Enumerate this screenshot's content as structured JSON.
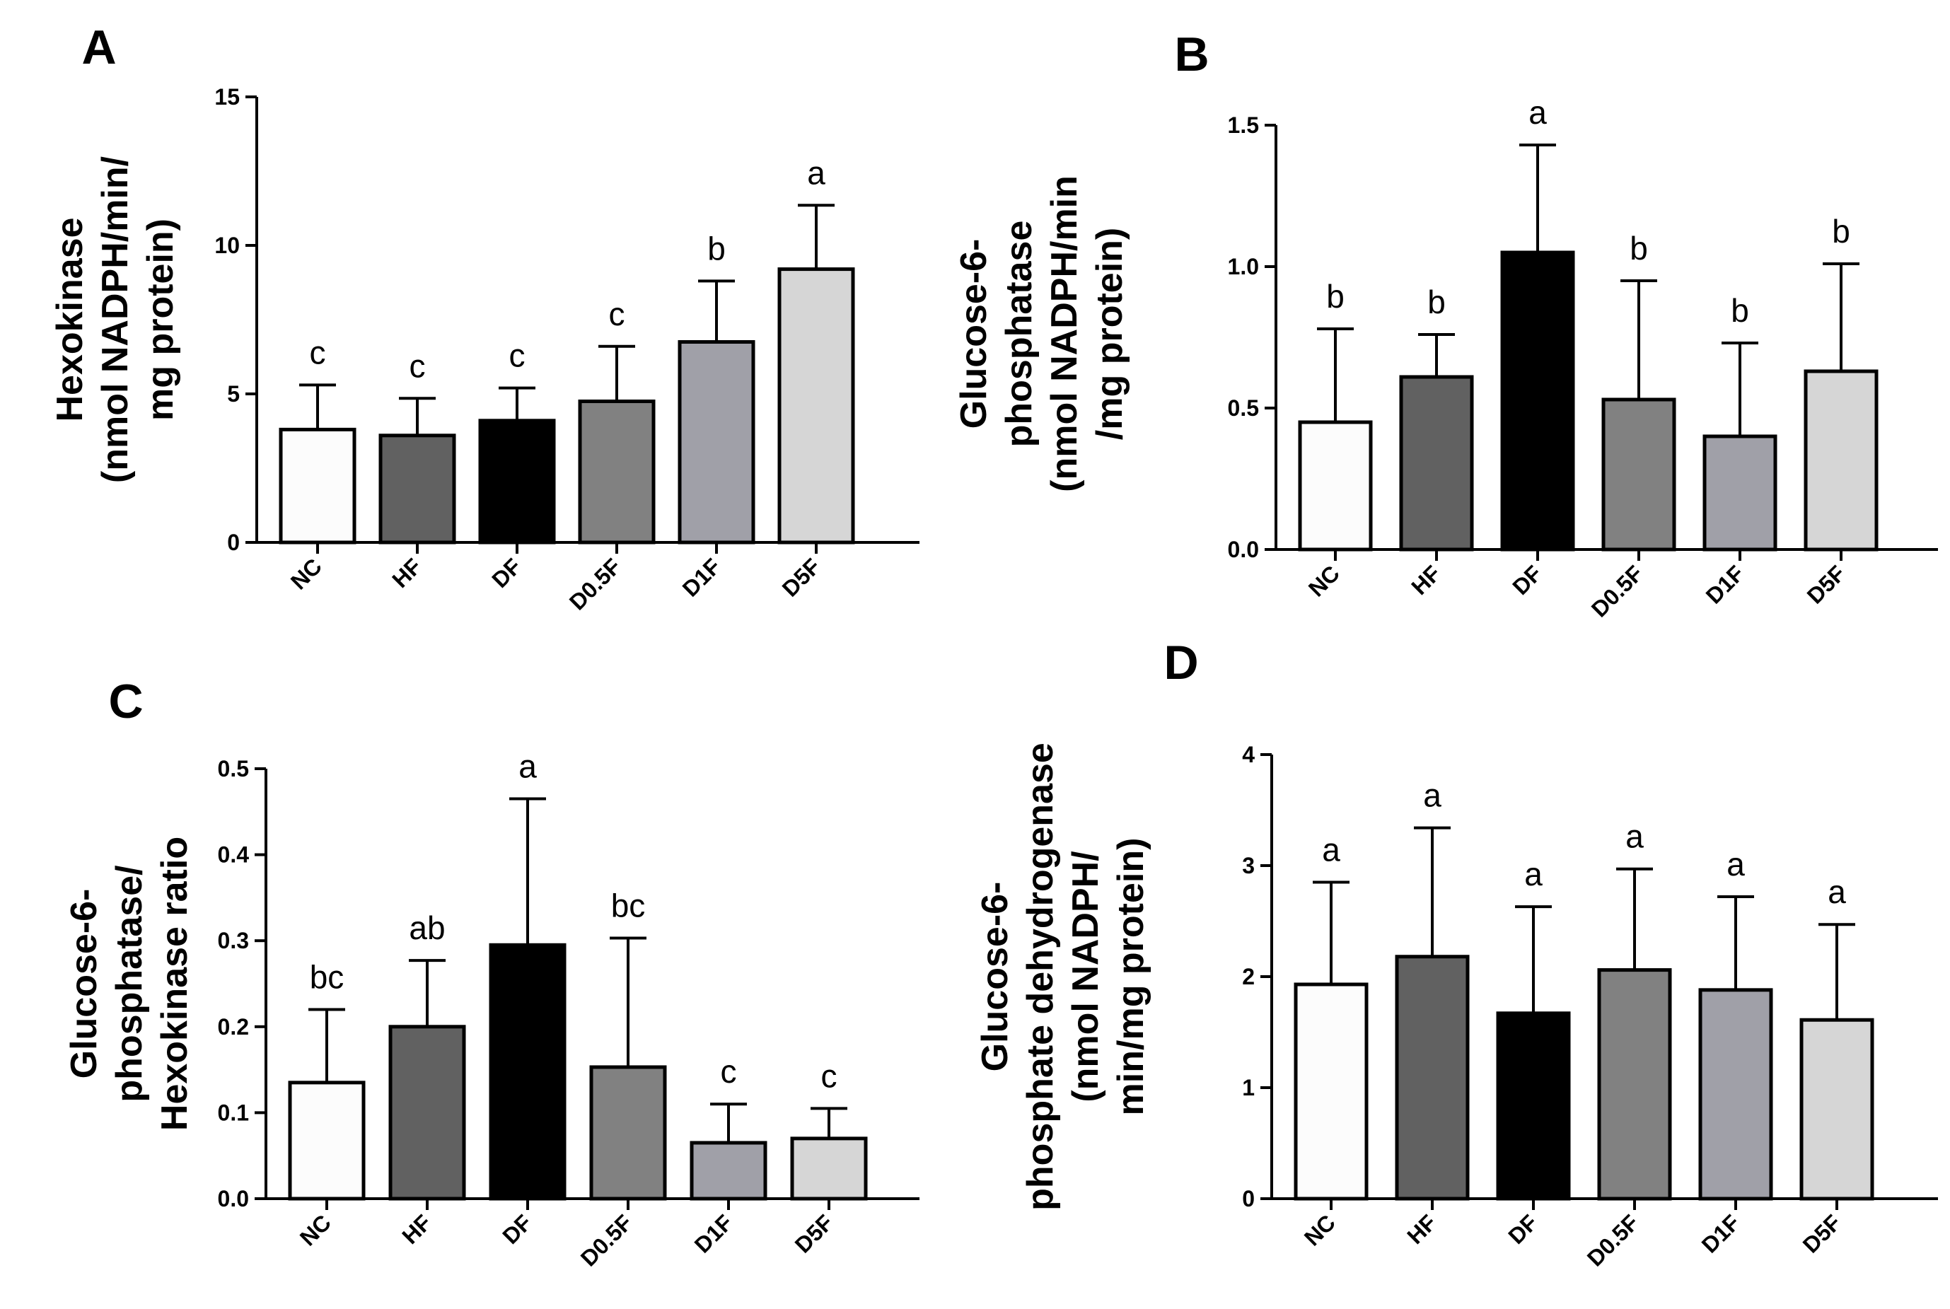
{
  "chart_data": [
    {
      "panel": "A",
      "type": "bar",
      "categories": [
        "NC",
        "HF",
        "DF",
        "D0.5F",
        "D1F",
        "D5F"
      ],
      "values": [
        3.8,
        3.6,
        4.1,
        4.75,
        6.75,
        9.2
      ],
      "errors": [
        1.5,
        1.25,
        1.1,
        1.85,
        2.05,
        2.15
      ],
      "significance": [
        "c",
        "c",
        "c",
        "c",
        "b",
        "a"
      ],
      "ylabel_lines": [
        "Hexokinase",
        "(nmol NADPH/min/",
        "mg protein)"
      ],
      "ylim": [
        0,
        15
      ],
      "yticks": [
        "0",
        "5",
        "10",
        "15"
      ],
      "ytick_values": [
        0,
        5,
        10,
        15
      ]
    },
    {
      "panel": "B",
      "type": "bar",
      "categories": [
        "NC",
        "HF",
        "DF",
        "D0.5F",
        "D1F",
        "D5F"
      ],
      "values": [
        0.45,
        0.61,
        1.05,
        0.53,
        0.4,
        0.63
      ],
      "errors": [
        0.33,
        0.15,
        0.38,
        0.42,
        0.33,
        0.38
      ],
      "significance": [
        "b",
        "b",
        "a",
        "b",
        "b",
        "b"
      ],
      "ylabel_lines": [
        "Glucose-6-",
        "phosphatase",
        "(nmol NADPH/min",
        "/mg protein)"
      ],
      "ylim": [
        0,
        1.5
      ],
      "yticks": [
        "0.0",
        "0.5",
        "1.0",
        "1.5"
      ],
      "ytick_values": [
        0,
        0.5,
        1.0,
        1.5
      ]
    },
    {
      "panel": "C",
      "type": "bar",
      "categories": [
        "NC",
        "HF",
        "DF",
        "D0.5F",
        "D1F",
        "D5F"
      ],
      "values": [
        0.135,
        0.2,
        0.295,
        0.153,
        0.065,
        0.07
      ],
      "errors": [
        0.085,
        0.077,
        0.17,
        0.15,
        0.045,
        0.035
      ],
      "significance": [
        "bc",
        "ab",
        "a",
        "bc",
        "c",
        "c"
      ],
      "ylabel_lines": [
        "Glucose-6-",
        "phosphatase/",
        "Hexokinase ratio"
      ],
      "ylim": [
        0,
        0.5
      ],
      "yticks": [
        "0.0",
        "0.1",
        "0.2",
        "0.3",
        "0.4",
        "0.5"
      ],
      "ytick_values": [
        0,
        0.1,
        0.2,
        0.3,
        0.4,
        0.5
      ]
    },
    {
      "panel": "D",
      "type": "bar",
      "categories": [
        "NC",
        "HF",
        "DF",
        "D0.5F",
        "D1F",
        "D5F"
      ],
      "values": [
        1.93,
        2.18,
        1.67,
        2.06,
        1.88,
        1.61
      ],
      "errors": [
        0.92,
        1.16,
        0.96,
        0.91,
        0.84,
        0.86
      ],
      "significance": [
        "a",
        "a",
        "a",
        "a",
        "a",
        "a"
      ],
      "ylabel_lines": [
        "Glucose-6-",
        "phosphate dehydrogenase",
        "(nmol NADPH/",
        "min/mg protein)"
      ],
      "ylim": [
        0,
        4
      ],
      "yticks": [
        "0",
        "1",
        "2",
        "3",
        "4"
      ],
      "ytick_values": [
        0,
        1,
        2,
        3,
        4
      ]
    }
  ],
  "colors": {
    "bars": [
      "#fcfcfc",
      "#616161",
      "#000000",
      "#818181",
      "#a0a0a8",
      "#d6d6d6"
    ],
    "axis": "#000000"
  }
}
